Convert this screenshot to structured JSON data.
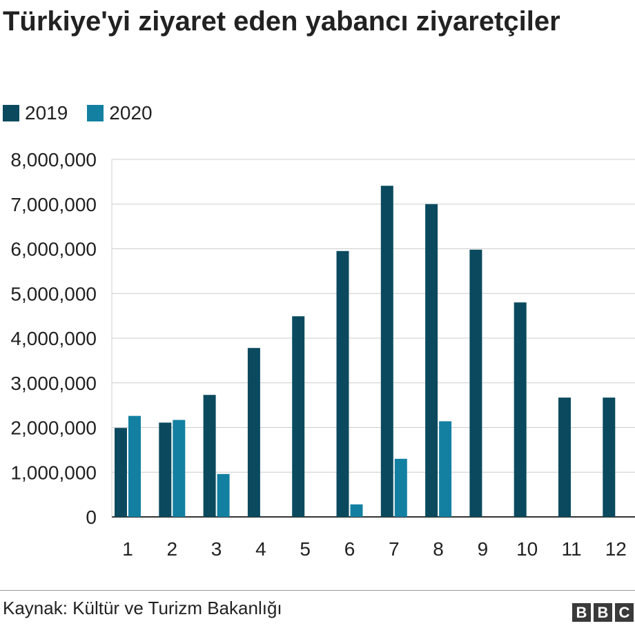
{
  "header": {
    "title": "Türkiye'yi ziyaret eden yabancı ziyaretçiler"
  },
  "legend": [
    {
      "label": "2019",
      "color": "#0b4a5e"
    },
    {
      "label": "2020",
      "color": "#1380a1"
    }
  ],
  "footer": {
    "source": "Kaynak: Kültür ve Turizm Bakanlığı",
    "logo_letters": [
      "B",
      "B",
      "C"
    ]
  },
  "chart_data": {
    "type": "bar",
    "title": "Türkiye'yi ziyaret eden yabancı ziyaretçiler",
    "xlabel": "",
    "ylabel": "",
    "categories": [
      "1",
      "2",
      "3",
      "4",
      "5",
      "6",
      "7",
      "8",
      "9",
      "10",
      "11",
      "12"
    ],
    "series": [
      {
        "name": "2019",
        "color": "#0b4a5e",
        "values": [
          1990000,
          2110000,
          2730000,
          3780000,
          4490000,
          5950000,
          7410000,
          7000000,
          5980000,
          4800000,
          2670000,
          2670000
        ]
      },
      {
        "name": "2020",
        "color": "#1380a1",
        "values": [
          2260000,
          2170000,
          960000,
          null,
          null,
          280000,
          1300000,
          2140000,
          null,
          null,
          null,
          null
        ]
      }
    ],
    "ylim": [
      0,
      8000000
    ],
    "yticks": [
      0,
      1000000,
      2000000,
      3000000,
      4000000,
      5000000,
      6000000,
      7000000,
      8000000
    ],
    "ytick_labels": [
      "0",
      "1,000,000",
      "2,000,000",
      "3,000,000",
      "4,000,000",
      "5,000,000",
      "6,000,000",
      "7,000,000",
      "8,000,000"
    ],
    "grid": true,
    "legend_position": "top-left"
  }
}
